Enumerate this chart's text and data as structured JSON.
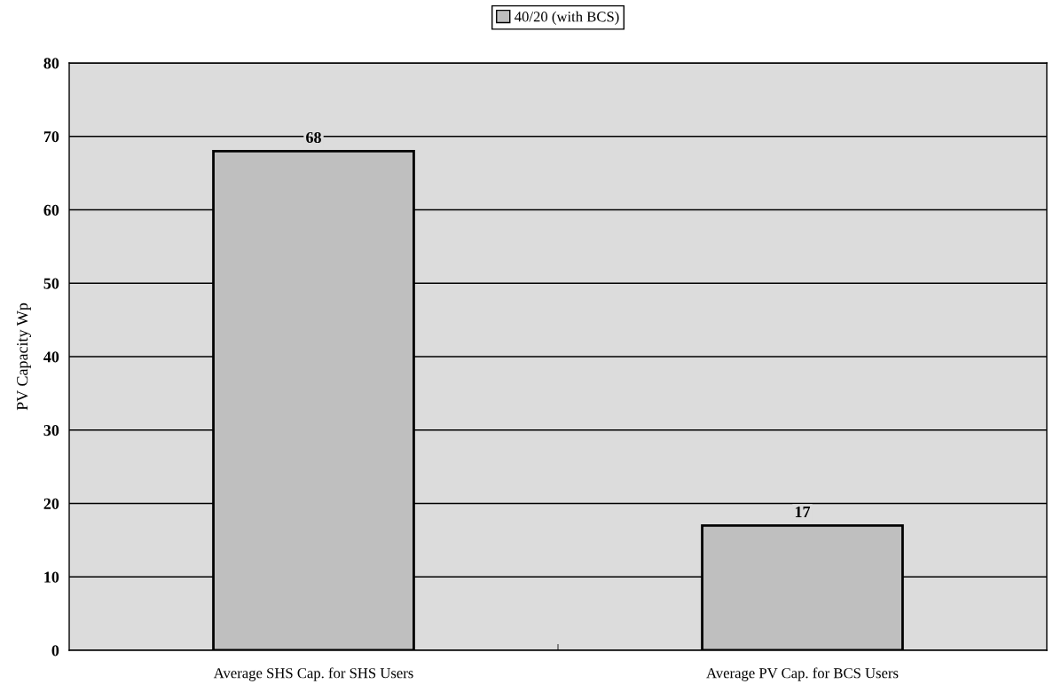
{
  "chart_data": {
    "type": "bar",
    "categories": [
      "Average SHS Cap. for SHS Users",
      "Average PV Cap. for BCS Users"
    ],
    "series": [
      {
        "name": "40/20 (with BCS)",
        "color": "#bfbfbf",
        "values": [
          68,
          17
        ]
      }
    ],
    "ylabel": "PV Capacity Wp",
    "ylim": [
      0,
      80
    ],
    "yticks": [
      0,
      10,
      20,
      30,
      40,
      50,
      60,
      70,
      80
    ],
    "grid": "y",
    "legend": "top",
    "data_labels": true
  }
}
